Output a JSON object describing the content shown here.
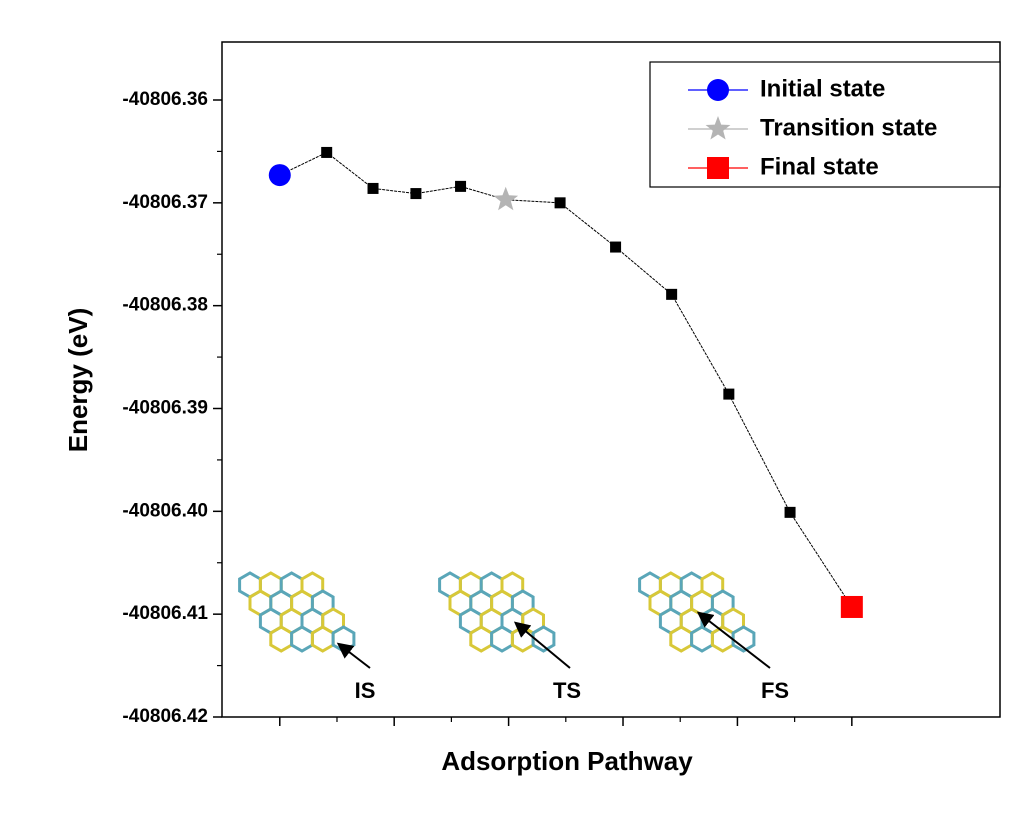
{
  "chart_data": {
    "type": "line",
    "x": [
      0,
      0.82,
      1.63,
      2.38,
      3.16,
      3.95,
      4.9,
      5.87,
      6.85,
      7.85,
      8.92,
      10
    ],
    "values": [
      null,
      -40806.3651,
      -40806.3686,
      -40806.3691,
      -40806.3684,
      null,
      -40806.37,
      -40806.3743,
      -40806.3789,
      -40806.3886,
      -40806.4001,
      null
    ],
    "color": "#000000",
    "series": [
      {
        "name": "Initial state",
        "color": "#0000ff",
        "marker": "circle",
        "values": [
          -40806.3673,
          null,
          null,
          null,
          null,
          null,
          null,
          null,
          null,
          null,
          null,
          null
        ]
      },
      {
        "name": "Transition state",
        "color": "#b4b4b4",
        "marker": "star",
        "values": [
          null,
          null,
          null,
          null,
          null,
          -40806.3697,
          null,
          null,
          null,
          null,
          null,
          null
        ]
      },
      {
        "name": "Final state",
        "color": "#ff0000",
        "marker": "square",
        "values": [
          null,
          null,
          null,
          null,
          null,
          null,
          null,
          null,
          null,
          null,
          null,
          -40806.4093
        ]
      }
    ],
    "xlabel": "Adsorption Pathway",
    "ylabel": "Energy (eV)",
    "xlim": [
      -1.01,
      12.59
    ],
    "xticks": [
      0,
      2,
      4,
      6,
      8,
      10
    ],
    "ylim": [
      -40806.42,
      -40806.35436
    ],
    "yticks": [
      -40806.36,
      -40806.37,
      -40806.38,
      -40806.39,
      {
        "value": -40806.4,
        "label": "-40806.40"
      },
      -40806.41,
      -40806.42
    ],
    "legend": "upper right",
    "annotations": [
      "IS",
      "TS",
      "FS"
    ]
  }
}
